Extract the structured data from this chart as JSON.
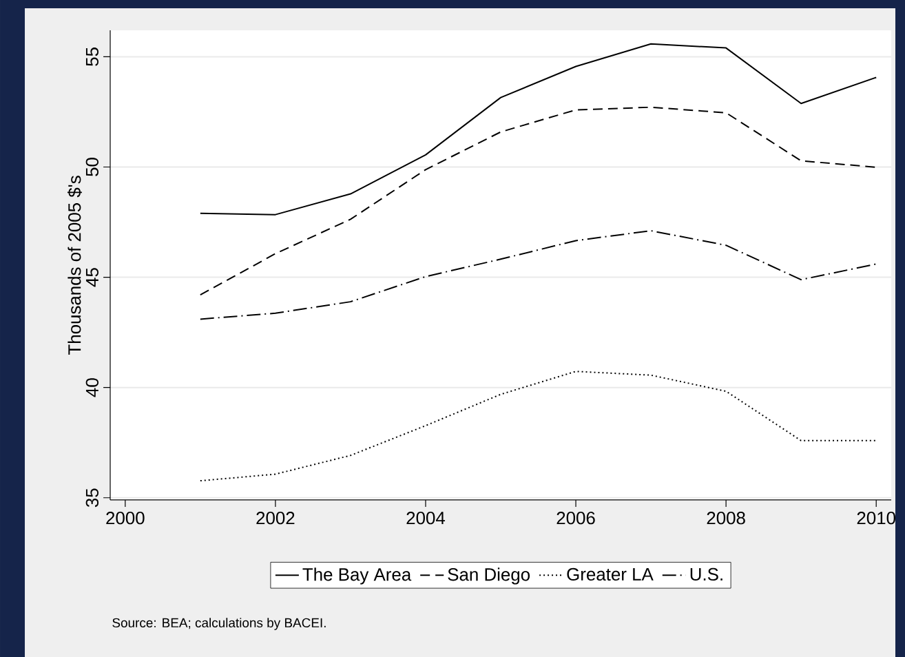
{
  "chart_data": {
    "type": "line",
    "ylabel": "Thousands of 2005 $'s",
    "x": [
      2001,
      2002,
      2003,
      2004,
      2005,
      2006,
      2007,
      2008,
      2009,
      2010
    ],
    "series": [
      {
        "name": "The Bay Area",
        "color": "#000000",
        "line_style": "solid",
        "values": [
          47.9,
          47.84,
          48.78,
          50.55,
          53.15,
          54.56,
          55.58,
          55.4,
          52.88,
          54.06
        ]
      },
      {
        "name": "San Diego",
        "color": "#000000",
        "line_style": "dashed",
        "values": [
          44.2,
          46.07,
          47.63,
          49.88,
          51.59,
          52.59,
          52.71,
          52.46,
          50.28,
          49.99
        ]
      },
      {
        "name": "Greater LA",
        "color": "#000000",
        "line_style": "dotted",
        "values": [
          35.77,
          36.07,
          36.92,
          38.27,
          39.69,
          40.73,
          40.56,
          39.83,
          37.59,
          37.59
        ]
      },
      {
        "name": "U.S.",
        "color": "#000000",
        "line_style": "dashdot",
        "values": [
          43.1,
          43.37,
          43.89,
          45.03,
          45.82,
          46.66,
          47.11,
          46.45,
          44.89,
          45.6
        ]
      }
    ],
    "xlim": [
      1999.8,
      2010.2
    ],
    "xticks": [
      2000,
      2002,
      2004,
      2006,
      2008,
      2010
    ],
    "ylim": [
      34.9,
      56.2
    ],
    "yticks": [
      35,
      40,
      45,
      50,
      55
    ],
    "grid": "y",
    "legend": "bottom",
    "marker": "none",
    "annotations": [
      "Source: BEA; calculations by BACEI."
    ]
  }
}
